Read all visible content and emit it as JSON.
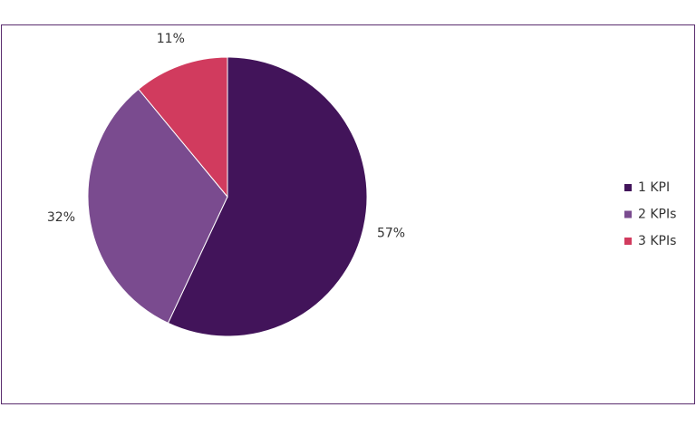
{
  "chart_data": {
    "type": "pie",
    "categories": [
      "1 KPI",
      "2 KPIs",
      "3 KPIs"
    ],
    "values": [
      57,
      32,
      11
    ],
    "value_labels": [
      "57%",
      "32%",
      "11%"
    ],
    "colors": [
      "#42145a",
      "#7a4b8f",
      "#d13b5e"
    ],
    "legend": "right"
  }
}
